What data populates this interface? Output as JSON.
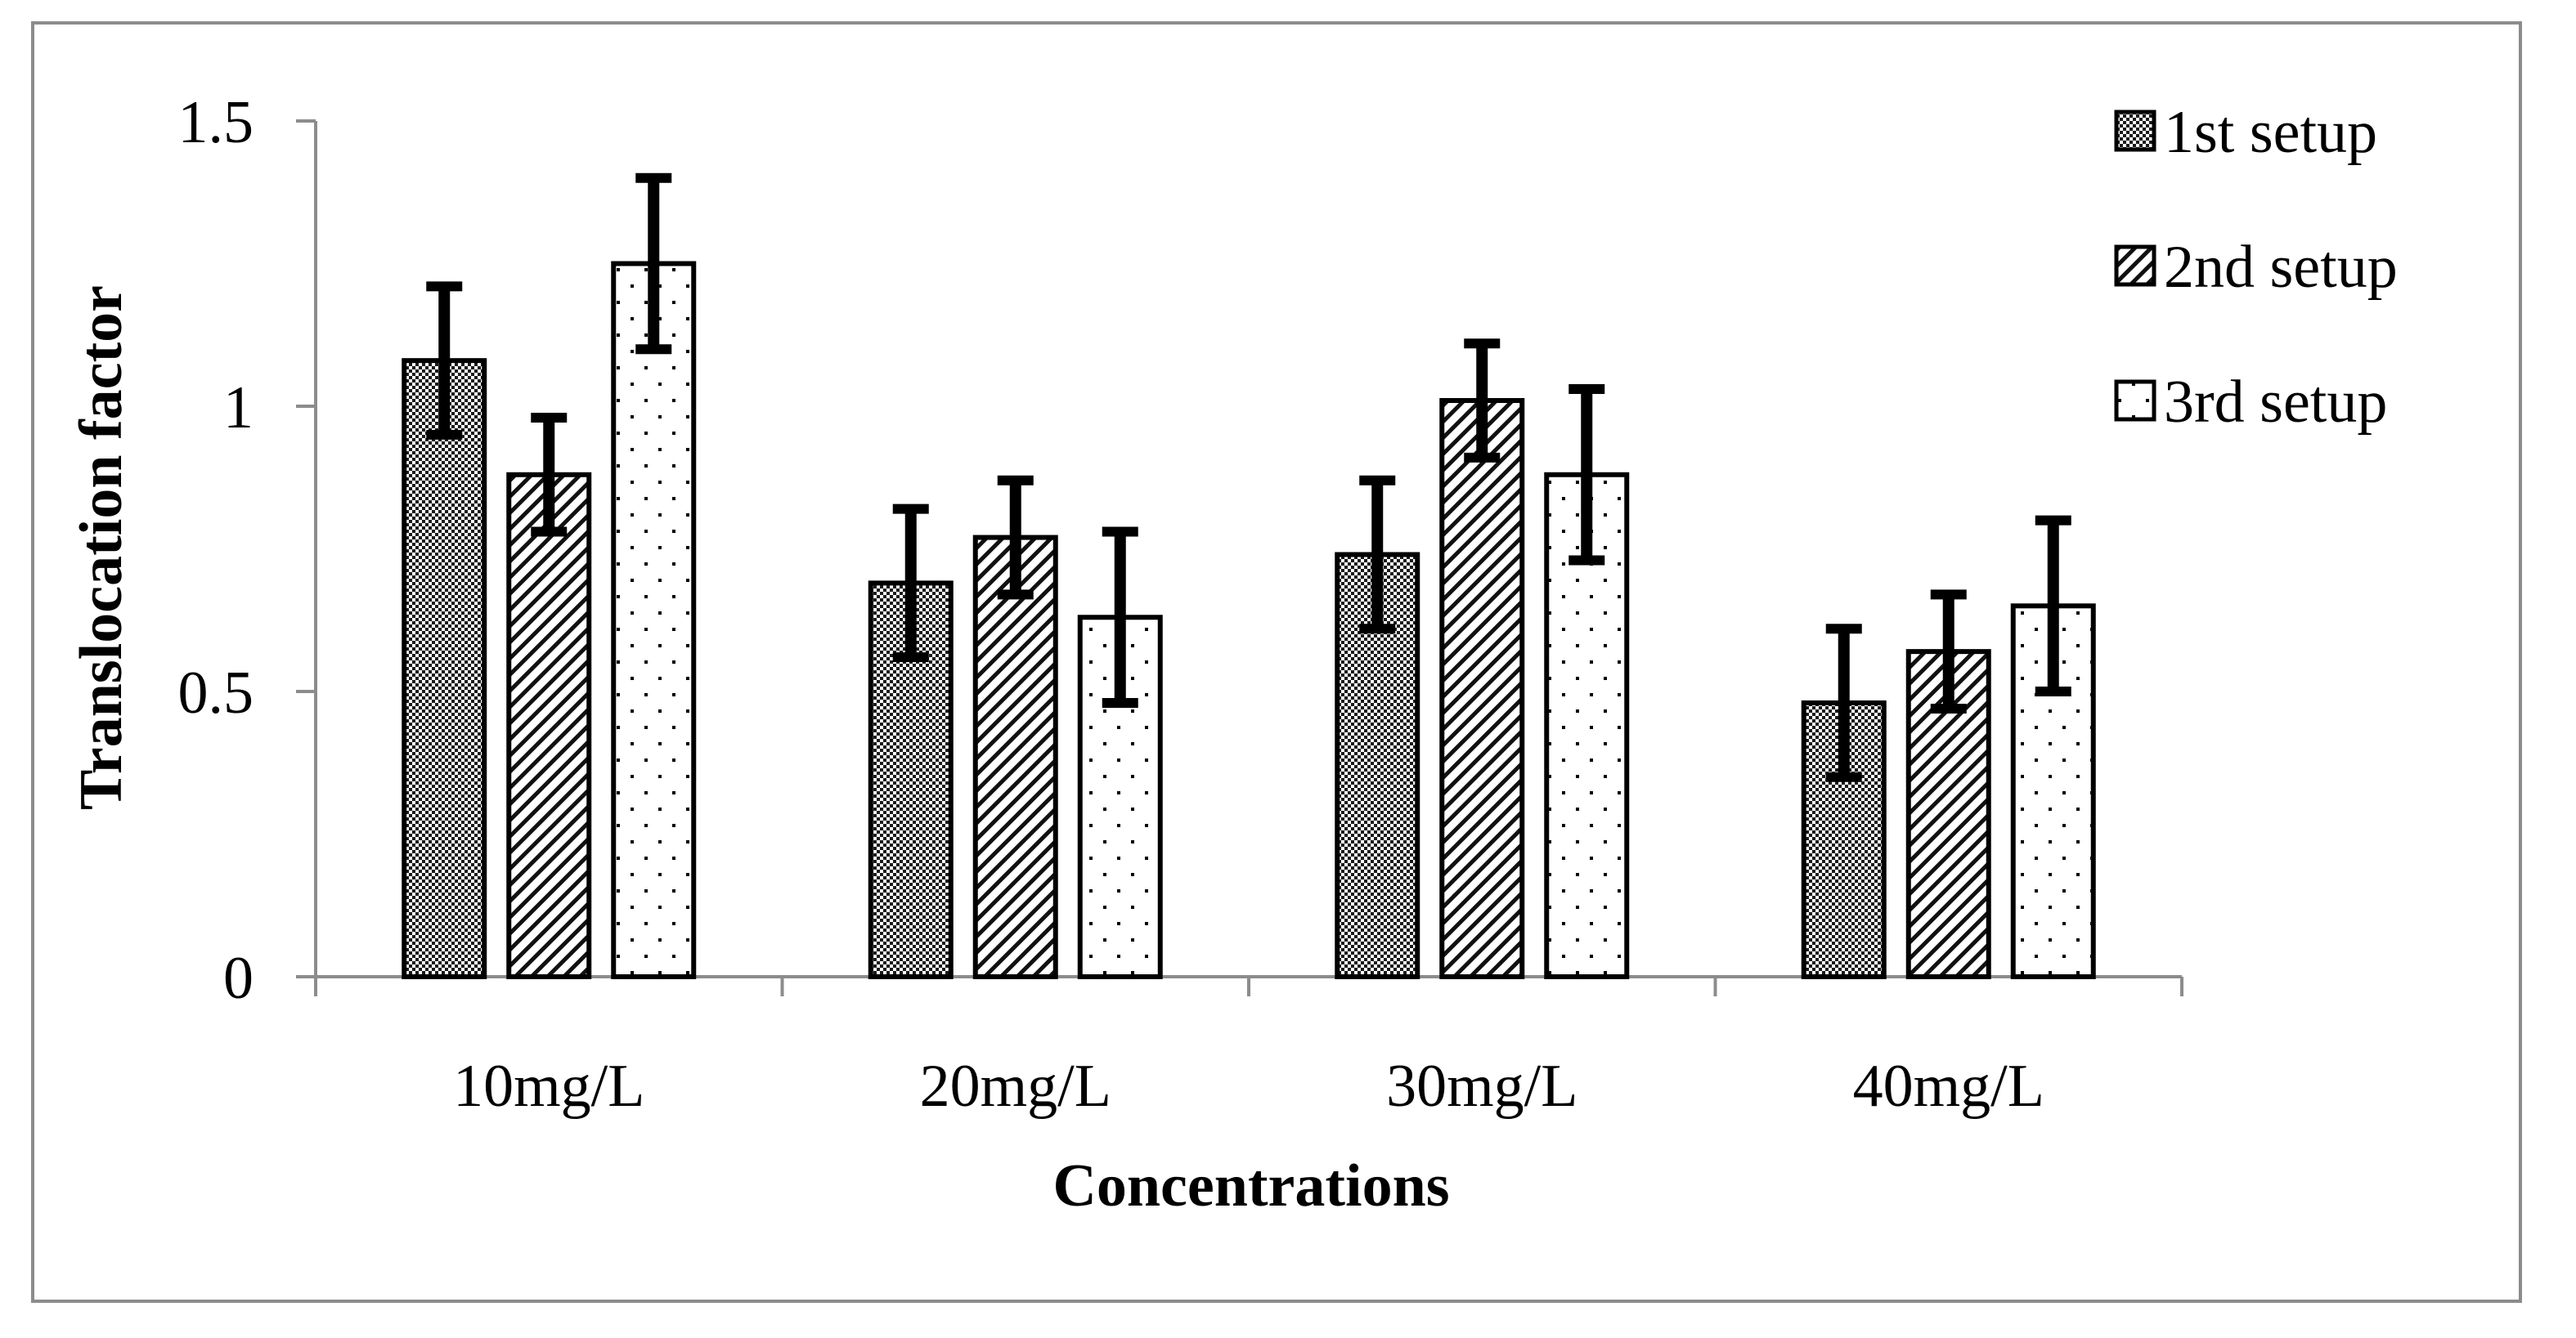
{
  "chart_data": {
    "type": "bar",
    "title": "",
    "xlabel": "Concentrations",
    "ylabel": "Translocation factor",
    "ylim": [
      0,
      1.5
    ],
    "yticks": [
      0,
      0.5,
      1,
      1.5
    ],
    "ytick_labels": [
      "0",
      "0.5",
      "1",
      "1.5"
    ],
    "grid": false,
    "legend_position": "top-right",
    "categories": [
      "10mg/L",
      "20mg/L",
      "30mg/L",
      "40mg/L"
    ],
    "series": [
      {
        "name": "1st setup",
        "pattern": "checker",
        "values": [
          1.08,
          0.69,
          0.74,
          0.48
        ],
        "errors": [
          0.13,
          0.13,
          0.13,
          0.13
        ]
      },
      {
        "name": "2nd setup",
        "pattern": "diagonal",
        "values": [
          0.88,
          0.77,
          1.01,
          0.57
        ],
        "errors": [
          0.1,
          0.1,
          0.1,
          0.1
        ]
      },
      {
        "name": "3rd setup",
        "pattern": "dots",
        "values": [
          1.25,
          0.63,
          0.88,
          0.65
        ],
        "errors": [
          0.15,
          0.15,
          0.15,
          0.15
        ]
      }
    ]
  },
  "colors": {
    "bar_outline": "#000000",
    "error_bar": "#000000",
    "axis": "#8c8c8c",
    "frame": "#8c8c8c"
  }
}
